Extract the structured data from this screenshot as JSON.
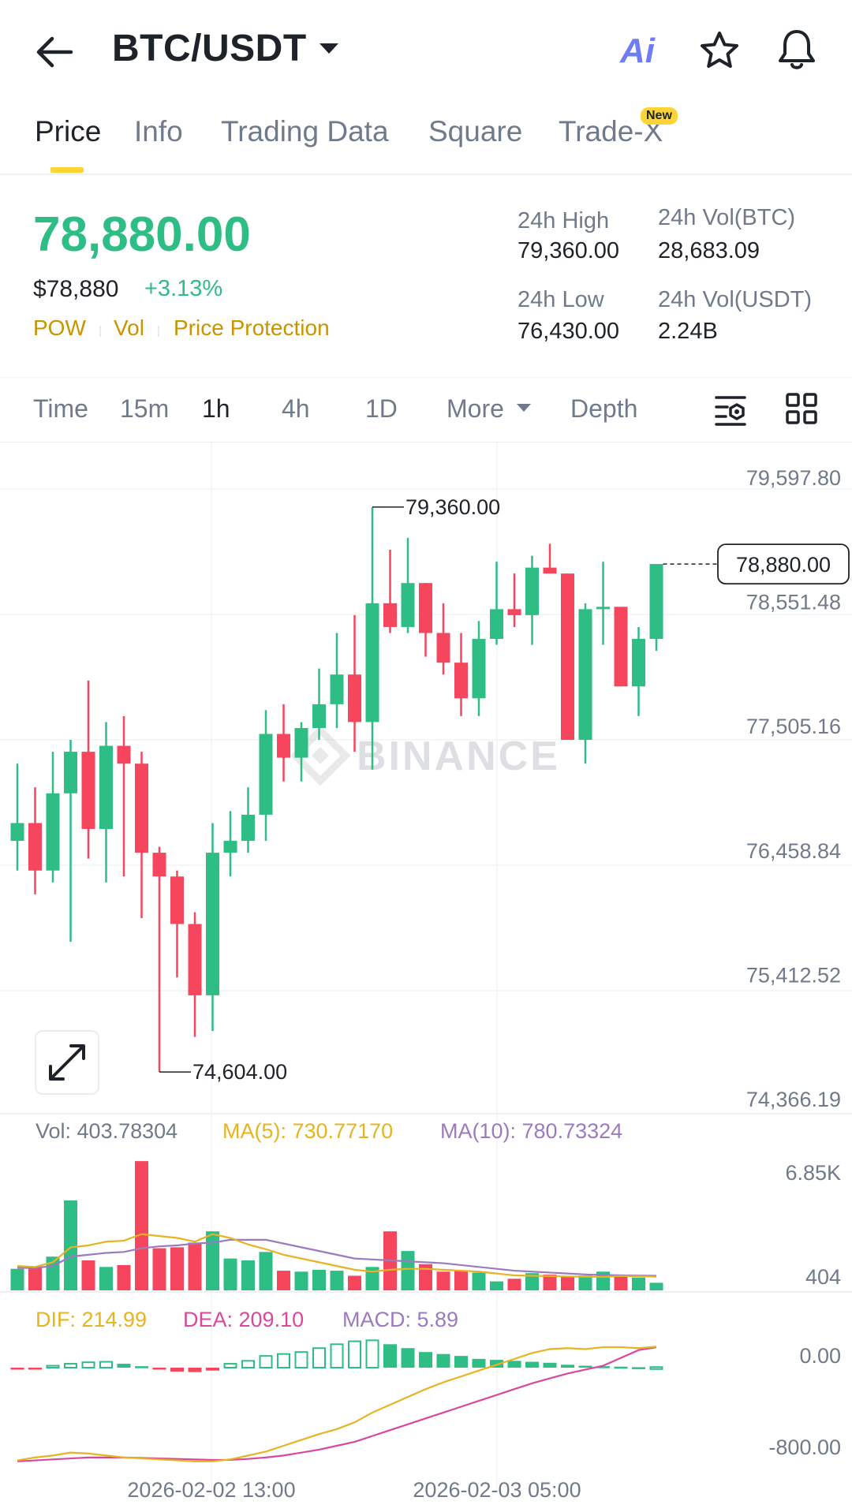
{
  "header": {
    "title": "BTC/USDT",
    "ai_label": "Ai",
    "icons": [
      "back-arrow-icon",
      "chevron-down-icon",
      "ai-icon",
      "star-icon",
      "bell-icon"
    ]
  },
  "tabs": [
    {
      "label": "Price",
      "active": true
    },
    {
      "label": "Info"
    },
    {
      "label": "Trading Data"
    },
    {
      "label": "Square"
    },
    {
      "label": "Trade-X",
      "badge": "New"
    }
  ],
  "ticker": {
    "last_price": "78,880.00",
    "usd_price": "$78,880",
    "change_pct": "+3.13%",
    "tags": [
      "POW",
      "Vol",
      "Price Protection"
    ],
    "stats": {
      "high_label": "24h High",
      "high_value": "79,360.00",
      "vol_btc_label": "24h Vol(BTC)",
      "vol_btc_value": "28,683.09",
      "low_label": "24h Low",
      "low_value": "76,430.00",
      "vol_usdt_label": "24h Vol(USDT)",
      "vol_usdt_value": "2.24B"
    }
  },
  "intervals": {
    "items": [
      "Time",
      "15m",
      "1h",
      "4h",
      "1D",
      "More",
      "Depth"
    ],
    "active": "1h"
  },
  "colors": {
    "up": "#2ebd85",
    "down": "#f6465d",
    "ma5": "#e6b422",
    "ma10": "#9b7bbf",
    "dea": "#d9489c",
    "accent": "#fcd535"
  },
  "chart_data": [
    {
      "type": "candlestick",
      "interval": "1h",
      "watermark": "BINANCE",
      "y_ticks": [
        "79,597.80",
        "78,551.48",
        "77,505.16",
        "76,458.84",
        "75,412.52",
        "74,366.19"
      ],
      "ylim": [
        74366.19,
        79597.8
      ],
      "x_ticks": [
        "2026-02-02 13:00",
        "2026-02-03 05:00"
      ],
      "last_price_label": "78,880.00",
      "max_label": "79,360.00",
      "min_label": "74,604.00",
      "candles": [
        {
          "o": 76550,
          "h": 77200,
          "l": 76300,
          "c": 76700
        },
        {
          "o": 76700,
          "h": 77000,
          "l": 76100,
          "c": 76300
        },
        {
          "o": 76300,
          "h": 77300,
          "l": 76200,
          "c": 76950
        },
        {
          "o": 76950,
          "h": 77400,
          "l": 75700,
          "c": 77300
        },
        {
          "o": 77300,
          "h": 77900,
          "l": 76400,
          "c": 76650
        },
        {
          "o": 76650,
          "h": 77550,
          "l": 76200,
          "c": 77350
        },
        {
          "o": 77350,
          "h": 77600,
          "l": 76250,
          "c": 77200
        },
        {
          "o": 77200,
          "h": 77300,
          "l": 75900,
          "c": 76450
        },
        {
          "o": 76450,
          "h": 76500,
          "l": 74604,
          "c": 76250
        },
        {
          "o": 76250,
          "h": 76300,
          "l": 75400,
          "c": 75850
        },
        {
          "o": 75850,
          "h": 75950,
          "l": 74900,
          "c": 75250
        },
        {
          "o": 75250,
          "h": 76700,
          "l": 74950,
          "c": 76450
        },
        {
          "o": 76450,
          "h": 76800,
          "l": 76250,
          "c": 76550
        },
        {
          "o": 76550,
          "h": 77000,
          "l": 76450,
          "c": 76770
        },
        {
          "o": 76770,
          "h": 77650,
          "l": 76550,
          "c": 77450
        },
        {
          "o": 77450,
          "h": 77700,
          "l": 77050,
          "c": 77250
        },
        {
          "o": 77250,
          "h": 77550,
          "l": 77050,
          "c": 77500
        },
        {
          "o": 77500,
          "h": 78000,
          "l": 77400,
          "c": 77700
        },
        {
          "o": 77700,
          "h": 78300,
          "l": 77500,
          "c": 77950
        },
        {
          "o": 77950,
          "h": 78450,
          "l": 77300,
          "c": 77550
        },
        {
          "o": 77550,
          "h": 79360,
          "l": 77150,
          "c": 78550
        },
        {
          "o": 78550,
          "h": 79000,
          "l": 78300,
          "c": 78350
        },
        {
          "o": 78350,
          "h": 79100,
          "l": 78300,
          "c": 78720
        },
        {
          "o": 78720,
          "h": 78720,
          "l": 78100,
          "c": 78300
        },
        {
          "o": 78300,
          "h": 78550,
          "l": 77950,
          "c": 78050
        },
        {
          "o": 78050,
          "h": 78300,
          "l": 77600,
          "c": 77750
        },
        {
          "o": 77750,
          "h": 78400,
          "l": 77600,
          "c": 78250
        },
        {
          "o": 78250,
          "h": 78900,
          "l": 78200,
          "c": 78500
        },
        {
          "o": 78500,
          "h": 78800,
          "l": 78350,
          "c": 78450
        },
        {
          "o": 78450,
          "h": 78950,
          "l": 78200,
          "c": 78850
        },
        {
          "o": 78850,
          "h": 79050,
          "l": 78800,
          "c": 78800
        },
        {
          "o": 78800,
          "h": 78800,
          "l": 77400,
          "c": 77400
        },
        {
          "o": 77400,
          "h": 78550,
          "l": 77200,
          "c": 78500
        },
        {
          "o": 78500,
          "h": 78900,
          "l": 78200,
          "c": 78520
        },
        {
          "o": 78520,
          "h": 78520,
          "l": 77850,
          "c": 77850
        },
        {
          "o": 77850,
          "h": 78350,
          "l": 77600,
          "c": 78250
        },
        {
          "o": 78250,
          "h": 78880,
          "l": 78150,
          "c": 78880
        }
      ]
    },
    {
      "type": "bar",
      "title": "Vol",
      "legend": {
        "vol": "Vol: 403.78304",
        "ma5": "MA(5): 730.77170",
        "ma10": "MA(10): 780.73324"
      },
      "y_ticks": [
        "6.85K",
        "404"
      ],
      "ylim": [
        0,
        7200
      ],
      "values": [
        1150,
        1250,
        1800,
        4800,
        1600,
        1250,
        1350,
        6900,
        2250,
        2300,
        2550,
        3150,
        1700,
        1600,
        2050,
        1050,
        1000,
        1100,
        1050,
        780,
        1250,
        3150,
        2100,
        1400,
        1000,
        1050,
        950,
        480,
        620,
        920,
        840,
        760,
        790,
        1000,
        780,
        690,
        404
      ],
      "ma5": [
        1300,
        1250,
        1500,
        2300,
        2400,
        2600,
        2650,
        3000,
        2900,
        2800,
        2600,
        3000,
        2800,
        2450,
        2200,
        1900,
        1700,
        1500,
        1300,
        1100,
        1000,
        1100,
        1150,
        1150,
        1100,
        1050,
        1000,
        900,
        800,
        780,
        760,
        740,
        730,
        720,
        760,
        760,
        730
      ],
      "ma10": [
        1200,
        1200,
        1300,
        1800,
        1900,
        2000,
        2050,
        2250,
        2350,
        2400,
        2500,
        2550,
        2700,
        2700,
        2700,
        2500,
        2300,
        2100,
        1900,
        1700,
        1650,
        1600,
        1550,
        1500,
        1450,
        1350,
        1250,
        1150,
        1050,
        1000,
        950,
        900,
        850,
        820,
        800,
        790,
        780
      ]
    },
    {
      "type": "macd",
      "legend": {
        "dif": "DIF: 214.99",
        "dea": "DEA: 209.10",
        "macd": "MACD: 5.89"
      },
      "y_ticks": [
        "0.00",
        "-800.00"
      ],
      "ylim": [
        -1000,
        250
      ],
      "hist": [
        -10,
        -5,
        20,
        40,
        55,
        60,
        40,
        15,
        -20,
        -40,
        -45,
        -30,
        40,
        70,
        120,
        140,
        160,
        200,
        240,
        270,
        280,
        240,
        200,
        160,
        140,
        120,
        90,
        80,
        70,
        60,
        50,
        30,
        20,
        15,
        10,
        5,
        5.89
      ],
      "dif": [
        -950,
        -920,
        -900,
        -870,
        -880,
        -900,
        -920,
        -930,
        -940,
        -950,
        -960,
        -960,
        -940,
        -900,
        -860,
        -800,
        -740,
        -680,
        -630,
        -560,
        -460,
        -380,
        -300,
        -220,
        -150,
        -90,
        -30,
        30,
        90,
        150,
        190,
        200,
        190,
        210,
        210,
        200,
        214.99
      ],
      "dea": [
        -960,
        -950,
        -940,
        -930,
        -920,
        -920,
        -920,
        -925,
        -930,
        -935,
        -940,
        -945,
        -945,
        -935,
        -920,
        -900,
        -870,
        -840,
        -800,
        -760,
        -700,
        -640,
        -580,
        -520,
        -460,
        -400,
        -340,
        -280,
        -220,
        -160,
        -110,
        -60,
        -20,
        20,
        100,
        180,
        209.1
      ],
      "x_ticks": [
        "2026-02-02 13:00",
        "2026-02-03 05:00"
      ]
    }
  ]
}
